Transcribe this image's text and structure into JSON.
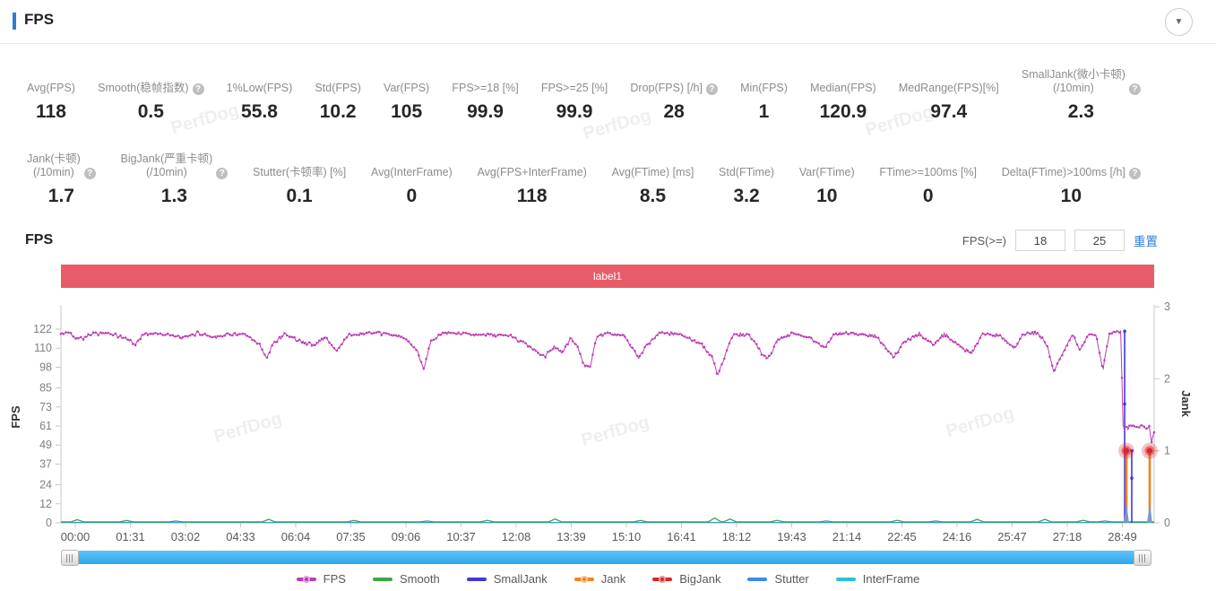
{
  "header": {
    "title": "FPS"
  },
  "icons": {
    "collapse": "▼",
    "help": "?"
  },
  "watermark": "PerfDog",
  "stats": {
    "row1": [
      {
        "label": "Avg(FPS)",
        "value": "118",
        "help": false
      },
      {
        "label": "Smooth(稳帧指数)",
        "value": "0.5",
        "help": true
      },
      {
        "label": "1%Low(FPS)",
        "value": "55.8",
        "help": false
      },
      {
        "label": "Std(FPS)",
        "value": "10.2",
        "help": false
      },
      {
        "label": "Var(FPS)",
        "value": "105",
        "help": false
      },
      {
        "label": "FPS>=18 [%]",
        "value": "99.9",
        "help": false
      },
      {
        "label": "FPS>=25 [%]",
        "value": "99.9",
        "help": false
      },
      {
        "label": "Drop(FPS) [/h]",
        "value": "28",
        "help": true
      },
      {
        "label": "Min(FPS)",
        "value": "1",
        "help": false
      },
      {
        "label": "Median(FPS)",
        "value": "120.9",
        "help": false
      },
      {
        "label": "MedRange(FPS)[%]",
        "value": "97.4",
        "help": false
      },
      {
        "label": "SmallJank(微小卡顿)\n(/10min)",
        "value": "2.3",
        "help": true
      }
    ],
    "row2": [
      {
        "label": "Jank(卡顿)\n(/10min)",
        "value": "1.7",
        "help": true
      },
      {
        "label": "BigJank(严重卡顿)\n(/10min)",
        "value": "1.3",
        "help": true
      },
      {
        "label": "Stutter(卡顿率) [%]",
        "value": "0.1",
        "help": false
      },
      {
        "label": "Avg(InterFrame)",
        "value": "0",
        "help": false
      },
      {
        "label": "Avg(FPS+InterFrame)",
        "value": "118",
        "help": false
      },
      {
        "label": "Avg(FTime) [ms]",
        "value": "8.5",
        "help": false
      },
      {
        "label": "Std(FTime)",
        "value": "3.2",
        "help": false
      },
      {
        "label": "Var(FTime)",
        "value": "10",
        "help": false
      },
      {
        "label": "FTime>=100ms [%]",
        "value": "0",
        "help": false
      },
      {
        "label": "Delta(FTime)>100ms [/h]",
        "value": "10",
        "help": true
      }
    ]
  },
  "section": {
    "title": "FPS",
    "filter_label": "FPS(>=)",
    "input1": "18",
    "input2": "25",
    "reset": "重置"
  },
  "banner": {
    "label": "label1",
    "color": "#e85c68"
  },
  "chart_data": {
    "type": "line",
    "x_labels": [
      "00:00",
      "01:31",
      "03:02",
      "04:33",
      "06:04",
      "07:35",
      "09:06",
      "10:37",
      "12:08",
      "13:39",
      "15:10",
      "16:41",
      "18:12",
      "19:43",
      "21:14",
      "22:45",
      "24:16",
      "25:47",
      "27:18",
      "28:49"
    ],
    "y_left": {
      "label": "FPS",
      "ticks": [
        0,
        12,
        24,
        37,
        49,
        61,
        73,
        85,
        98,
        110,
        122
      ],
      "range": [
        0,
        122
      ]
    },
    "y_right": {
      "label": "Jank",
      "ticks": [
        0,
        1,
        2,
        3
      ],
      "range": [
        0,
        3
      ]
    },
    "legend_position": "bottom",
    "grid": false,
    "series": [
      {
        "name": "FPS",
        "color": "#bd3cb4",
        "axis": "left",
        "type": "noisy-line",
        "dot": true,
        "noise": 1.3,
        "keypoints": [
          [
            0,
            119
          ],
          [
            0.008,
            120
          ],
          [
            0.012,
            117
          ],
          [
            0.02,
            116.5
          ],
          [
            0.03,
            119.5
          ],
          [
            0.045,
            119
          ],
          [
            0.055,
            117
          ],
          [
            0.062,
            115.5
          ],
          [
            0.068,
            112
          ],
          [
            0.075,
            119
          ],
          [
            0.09,
            119.5
          ],
          [
            0.1,
            118
          ],
          [
            0.112,
            116.5
          ],
          [
            0.125,
            119.5
          ],
          [
            0.14,
            117
          ],
          [
            0.155,
            119
          ],
          [
            0.168,
            118.5
          ],
          [
            0.182,
            112
          ],
          [
            0.188,
            103
          ],
          [
            0.194,
            113
          ],
          [
            0.205,
            119
          ],
          [
            0.22,
            114
          ],
          [
            0.232,
            112
          ],
          [
            0.242,
            117
          ],
          [
            0.252,
            108
          ],
          [
            0.262,
            118
          ],
          [
            0.28,
            119.5
          ],
          [
            0.3,
            119
          ],
          [
            0.315,
            116
          ],
          [
            0.326,
            108
          ],
          [
            0.332,
            97
          ],
          [
            0.338,
            114
          ],
          [
            0.35,
            119.5
          ],
          [
            0.37,
            119
          ],
          [
            0.39,
            118.5
          ],
          [
            0.41,
            118
          ],
          [
            0.425,
            113
          ],
          [
            0.437,
            107
          ],
          [
            0.443,
            105
          ],
          [
            0.452,
            111
          ],
          [
            0.458,
            107
          ],
          [
            0.466,
            116
          ],
          [
            0.472,
            112
          ],
          [
            0.478,
            100
          ],
          [
            0.484,
            98
          ],
          [
            0.49,
            117
          ],
          [
            0.5,
            119.5
          ],
          [
            0.515,
            118
          ],
          [
            0.528,
            104
          ],
          [
            0.536,
            112
          ],
          [
            0.548,
            119.5
          ],
          [
            0.565,
            119
          ],
          [
            0.585,
            113
          ],
          [
            0.595,
            105
          ],
          [
            0.601,
            93
          ],
          [
            0.607,
            104
          ],
          [
            0.615,
            119
          ],
          [
            0.63,
            118
          ],
          [
            0.642,
            106
          ],
          [
            0.648,
            104
          ],
          [
            0.655,
            115
          ],
          [
            0.668,
            119.5
          ],
          [
            0.685,
            117
          ],
          [
            0.698,
            110
          ],
          [
            0.708,
            119
          ],
          [
            0.725,
            119.5
          ],
          [
            0.745,
            118
          ],
          [
            0.762,
            104
          ],
          [
            0.77,
            113
          ],
          [
            0.785,
            119
          ],
          [
            0.798,
            112
          ],
          [
            0.808,
            119
          ],
          [
            0.825,
            110
          ],
          [
            0.833,
            107
          ],
          [
            0.843,
            119
          ],
          [
            0.858,
            118
          ],
          [
            0.872,
            110
          ],
          [
            0.88,
            119
          ],
          [
            0.893,
            119.5
          ],
          [
            0.902,
            112
          ],
          [
            0.908,
            95
          ],
          [
            0.914,
            104
          ],
          [
            0.92,
            112
          ],
          [
            0.926,
            119
          ],
          [
            0.932,
            108
          ],
          [
            0.94,
            119
          ],
          [
            0.947,
            118
          ],
          [
            0.953,
            96
          ],
          [
            0.959,
            119
          ],
          [
            0.964,
            120.5
          ],
          [
            0.9695,
            120
          ],
          [
            0.9715,
            61
          ],
          [
            0.976,
            60
          ],
          [
            0.981,
            61
          ],
          [
            0.985,
            60.5
          ],
          [
            0.989,
            61
          ],
          [
            0.9925,
            60
          ],
          [
            0.9955,
            61
          ],
          [
            0.9975,
            50
          ],
          [
            1,
            57
          ]
        ]
      },
      {
        "name": "Smooth",
        "color": "#3fa54a",
        "axis": "left",
        "type": "baseline-bumps",
        "dot": false,
        "baseline": 0.6,
        "bumps": [
          [
            0.015,
            2
          ],
          [
            0.06,
            1.5
          ],
          [
            0.105,
            1.2
          ],
          [
            0.19,
            2.2
          ],
          [
            0.268,
            1.5
          ],
          [
            0.335,
            1.2
          ],
          [
            0.39,
            1.6
          ],
          [
            0.452,
            2.4
          ],
          [
            0.53,
            1.5
          ],
          [
            0.598,
            3
          ],
          [
            0.612,
            2.4
          ],
          [
            0.655,
            1.6
          ],
          [
            0.7,
            1.2
          ],
          [
            0.765,
            1.6
          ],
          [
            0.8,
            1.2
          ],
          [
            0.838,
            2.2
          ],
          [
            0.9,
            2.2
          ],
          [
            0.935,
            1.6
          ],
          [
            0.955,
            1.2
          ]
        ]
      },
      {
        "name": "SmallJank",
        "color": "#4338d4",
        "axis": "right",
        "type": "event-vlines",
        "dot": false,
        "events": [
          {
            "x": 0.973,
            "from": 2.66,
            "to": 0
          },
          {
            "x": 0.9795,
            "from": 1.0,
            "to": 0
          }
        ]
      },
      {
        "name": "Jank",
        "color": "#f0831e",
        "axis": "right",
        "type": "event-spikes",
        "dot": true,
        "events": [
          {
            "x": 0.9746,
            "v": 1
          },
          {
            "x": 0.9959,
            "v": 1
          }
        ]
      },
      {
        "name": "BigJank",
        "color": "#d9262c",
        "axis": "right",
        "type": "event-dots",
        "dot": true,
        "events": [
          {
            "x": 0.9746,
            "v": 1
          },
          {
            "x": 0.9959,
            "v": 1
          }
        ]
      },
      {
        "name": "Stutter",
        "color": "#3d8af0",
        "axis": "right",
        "type": "flat",
        "dot": false,
        "value": 0
      },
      {
        "name": "InterFrame",
        "color": "#2ac3d4",
        "axis": "left",
        "type": "flat",
        "dot": false,
        "value": 0
      }
    ]
  }
}
